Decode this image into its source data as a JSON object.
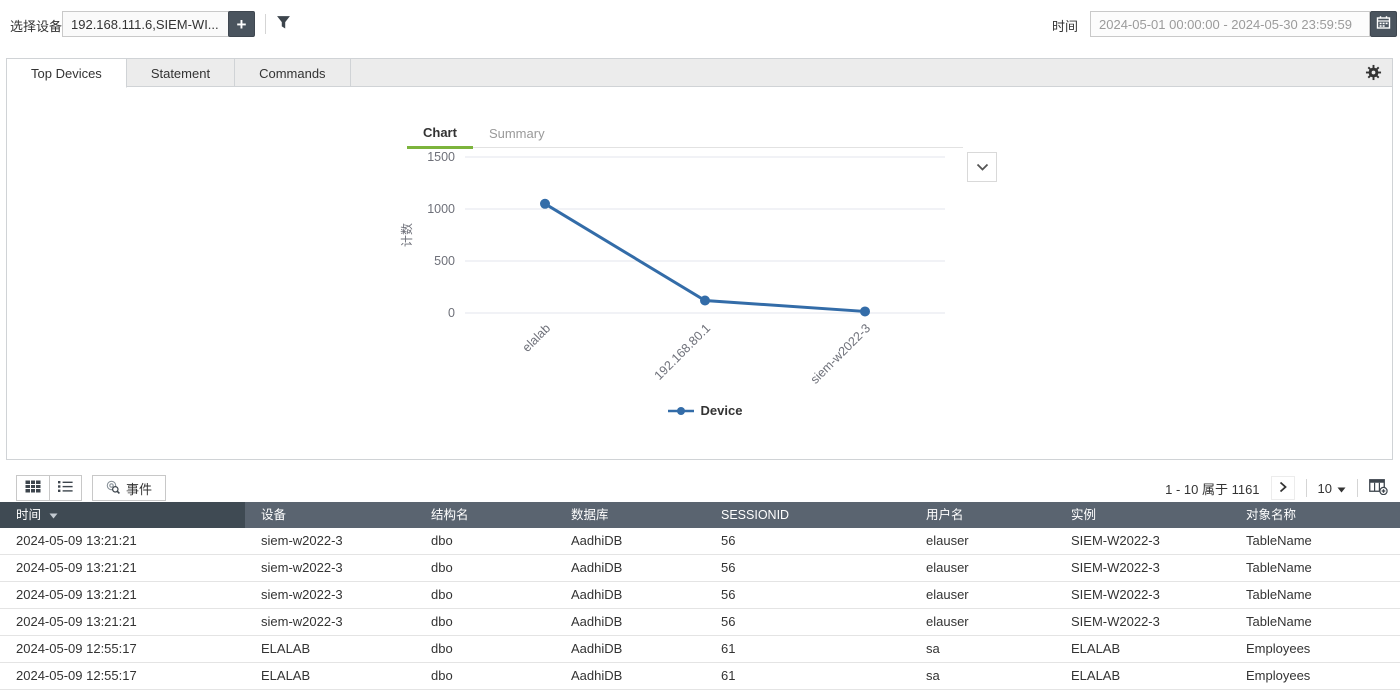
{
  "topbar": {
    "device_label": "选择设备",
    "device_value": "192.168.111.6,SIEM-WI...",
    "add_button_label": "+",
    "time_label": "时间",
    "time_value": "2024-05-01 00:00:00 - 2024-05-30 23:59:59"
  },
  "main_tabs": [
    {
      "label": "Top Devices",
      "active": true
    },
    {
      "label": "Statement",
      "active": false
    },
    {
      "label": "Commands",
      "active": false
    }
  ],
  "chart_tabs": [
    {
      "label": "Chart",
      "active": true
    },
    {
      "label": "Summary",
      "active": false
    }
  ],
  "chart_data": {
    "type": "line",
    "categories": [
      "elalab",
      "192.168.80.1",
      "siem-w2022-3"
    ],
    "series": [
      {
        "name": "Device",
        "values": [
          1050,
          120,
          15
        ],
        "color": "#336ca8"
      }
    ],
    "title": "",
    "xlabel": "",
    "ylabel": "计数",
    "ylim": [
      0,
      1500
    ],
    "yticks": [
      0,
      500,
      1000,
      1500
    ],
    "grid": true,
    "legend_position": "bottom"
  },
  "table_toolbar": {
    "event_button_label": "事件",
    "pagination_text": "1 - 10 属于 1161",
    "page_size": "10"
  },
  "table": {
    "columns": [
      "时间",
      "设备",
      "结构名",
      "数据库",
      "SESSIONID",
      "用户名",
      "实例",
      "对象名称"
    ],
    "sorted_column": "时间",
    "sort_direction": "desc",
    "rows": [
      [
        "2024-05-09 13:21:21",
        "siem-w2022-3",
        "dbo",
        "AadhiDB",
        "56",
        "elauser",
        "SIEM-W2022-3",
        "TableName"
      ],
      [
        "2024-05-09 13:21:21",
        "siem-w2022-3",
        "dbo",
        "AadhiDB",
        "56",
        "elauser",
        "SIEM-W2022-3",
        "TableName"
      ],
      [
        "2024-05-09 13:21:21",
        "siem-w2022-3",
        "dbo",
        "AadhiDB",
        "56",
        "elauser",
        "SIEM-W2022-3",
        "TableName"
      ],
      [
        "2024-05-09 13:21:21",
        "siem-w2022-3",
        "dbo",
        "AadhiDB",
        "56",
        "elauser",
        "SIEM-W2022-3",
        "TableName"
      ],
      [
        "2024-05-09 12:55:17",
        "ELALAB",
        "dbo",
        "AadhiDB",
        "61",
        "sa",
        "ELALAB",
        "Employees"
      ],
      [
        "2024-05-09 12:55:17",
        "ELALAB",
        "dbo",
        "AadhiDB",
        "61",
        "sa",
        "ELALAB",
        "Employees"
      ]
    ]
  },
  "colors": {
    "line_series": "#336ca8",
    "active_subtab_underline": "#7cb43c",
    "header_first_column": "#3f4a53",
    "header_other_columns": "#5a6470",
    "dark_button": "#4a545e"
  },
  "icons": {
    "add_device": "plus-icon",
    "filter": "filter-icon",
    "calendar": "calendar-icon",
    "settings": "gear-icon",
    "chart_collapse": "chevron-down-icon",
    "grid_view": "grid-view-icon",
    "list_view": "list-view-icon",
    "event_search": "event-search-icon",
    "next_page": "chevron-right-icon",
    "page_size_caret": "caret-down-icon",
    "add_column": "add-column-icon",
    "time_sort": "sort-desc-icon"
  }
}
